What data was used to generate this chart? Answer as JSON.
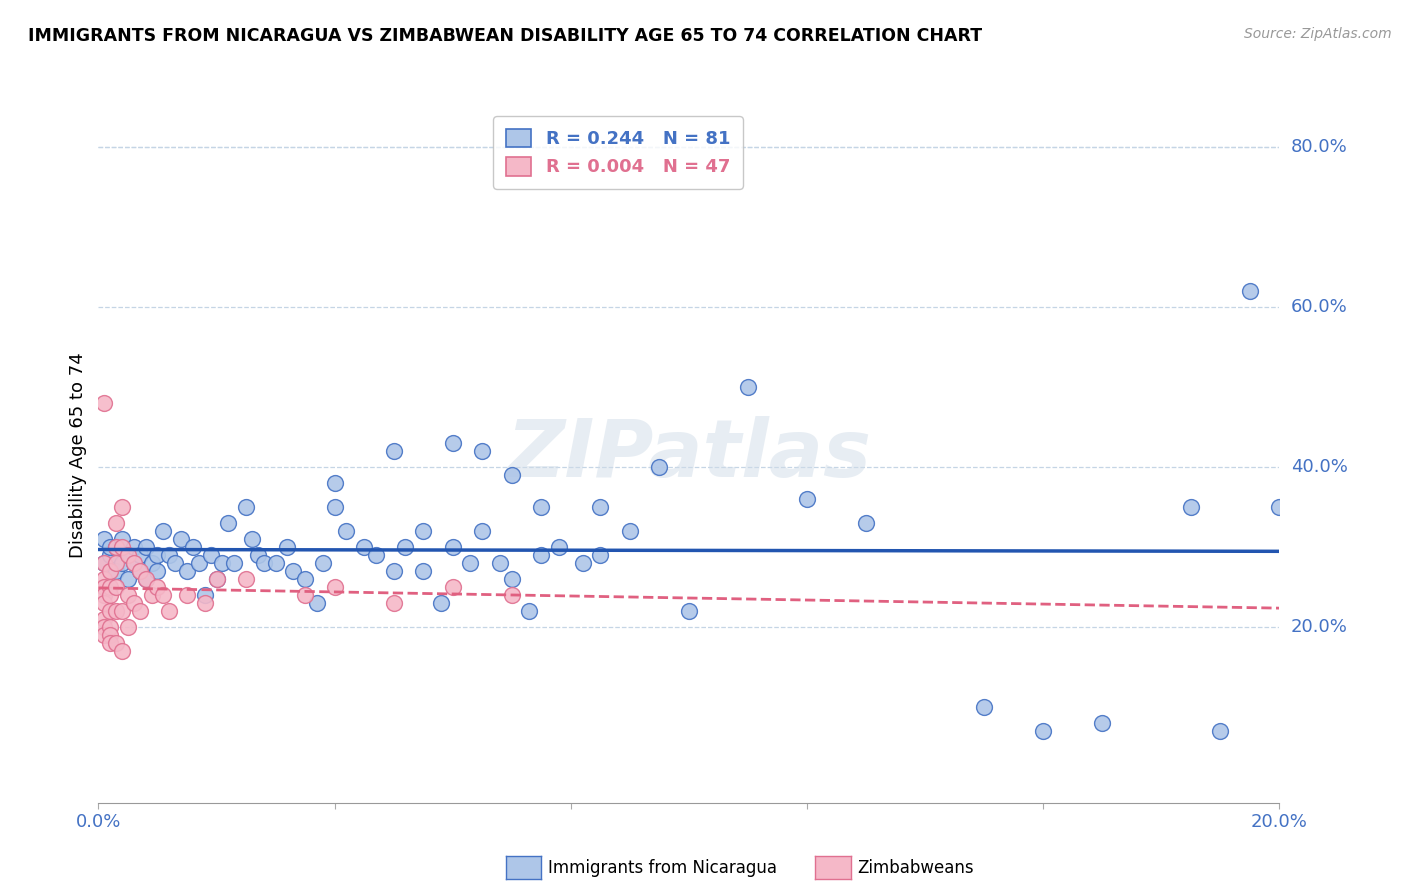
{
  "title": "IMMIGRANTS FROM NICARAGUA VS ZIMBABWEAN DISABILITY AGE 65 TO 74 CORRELATION CHART",
  "source": "Source: ZipAtlas.com",
  "ylabel": "Disability Age 65 to 74",
  "ytick_vals": [
    0.2,
    0.4,
    0.6,
    0.8
  ],
  "xlim": [
    0.0,
    0.2
  ],
  "ylim": [
    -0.02,
    0.85
  ],
  "color_nicaragua": "#aec6e8",
  "color_zimbabwe": "#f5b8c8",
  "edge_nicaragua": "#4472c4",
  "edge_zimbabwe": "#e07090",
  "line_nicaragua_color": "#2255b0",
  "line_zimbabwe_color": "#e06080",
  "watermark": "ZIPatlas",
  "nicaragua_x": [
    0.001,
    0.001,
    0.002,
    0.002,
    0.003,
    0.003,
    0.004,
    0.004,
    0.005,
    0.005,
    0.006,
    0.006,
    0.007,
    0.007,
    0.008,
    0.008,
    0.009,
    0.01,
    0.01,
    0.011,
    0.012,
    0.013,
    0.014,
    0.015,
    0.016,
    0.017,
    0.018,
    0.019,
    0.02,
    0.021,
    0.022,
    0.023,
    0.025,
    0.026,
    0.027,
    0.028,
    0.03,
    0.032,
    0.033,
    0.035,
    0.037,
    0.038,
    0.04,
    0.042,
    0.045,
    0.047,
    0.05,
    0.052,
    0.055,
    0.058,
    0.06,
    0.063,
    0.065,
    0.068,
    0.07,
    0.073,
    0.075,
    0.078,
    0.082,
    0.085,
    0.04,
    0.05,
    0.055,
    0.06,
    0.065,
    0.07,
    0.075,
    0.085,
    0.09,
    0.095,
    0.1,
    0.11,
    0.12,
    0.13,
    0.15,
    0.16,
    0.17,
    0.185,
    0.19,
    0.195,
    0.2
  ],
  "nicaragua_y": [
    0.28,
    0.31,
    0.29,
    0.3,
    0.27,
    0.3,
    0.28,
    0.31,
    0.29,
    0.26,
    0.28,
    0.3,
    0.27,
    0.29,
    0.3,
    0.26,
    0.28,
    0.27,
    0.29,
    0.32,
    0.29,
    0.28,
    0.31,
    0.27,
    0.3,
    0.28,
    0.24,
    0.29,
    0.26,
    0.28,
    0.33,
    0.28,
    0.35,
    0.31,
    0.29,
    0.28,
    0.28,
    0.3,
    0.27,
    0.26,
    0.23,
    0.28,
    0.35,
    0.32,
    0.3,
    0.29,
    0.27,
    0.3,
    0.27,
    0.23,
    0.3,
    0.28,
    0.32,
    0.28,
    0.26,
    0.22,
    0.29,
    0.3,
    0.28,
    0.29,
    0.38,
    0.42,
    0.32,
    0.43,
    0.42,
    0.39,
    0.35,
    0.35,
    0.32,
    0.4,
    0.22,
    0.5,
    0.36,
    0.33,
    0.1,
    0.07,
    0.08,
    0.35,
    0.07,
    0.62,
    0.35
  ],
  "zimbabwe_x": [
    0.001,
    0.001,
    0.001,
    0.001,
    0.001,
    0.001,
    0.001,
    0.001,
    0.001,
    0.002,
    0.002,
    0.002,
    0.002,
    0.002,
    0.002,
    0.002,
    0.003,
    0.003,
    0.003,
    0.003,
    0.003,
    0.003,
    0.004,
    0.004,
    0.004,
    0.004,
    0.005,
    0.005,
    0.005,
    0.006,
    0.006,
    0.007,
    0.007,
    0.008,
    0.009,
    0.01,
    0.011,
    0.012,
    0.015,
    0.018,
    0.02,
    0.025,
    0.035,
    0.04,
    0.05,
    0.06,
    0.07
  ],
  "zimbabwe_y": [
    0.28,
    0.26,
    0.25,
    0.24,
    0.23,
    0.21,
    0.2,
    0.19,
    0.48,
    0.27,
    0.25,
    0.24,
    0.22,
    0.2,
    0.19,
    0.18,
    0.33,
    0.3,
    0.28,
    0.25,
    0.22,
    0.18,
    0.35,
    0.3,
    0.22,
    0.17,
    0.29,
    0.24,
    0.2,
    0.28,
    0.23,
    0.27,
    0.22,
    0.26,
    0.24,
    0.25,
    0.24,
    0.22,
    0.24,
    0.23,
    0.26,
    0.26,
    0.24,
    0.25,
    0.23,
    0.25,
    0.24
  ],
  "legend_r_nic": "R = 0.244",
  "legend_n_nic": "N = 81",
  "legend_r_zim": "R = 0.004",
  "legend_n_zim": "N = 47"
}
